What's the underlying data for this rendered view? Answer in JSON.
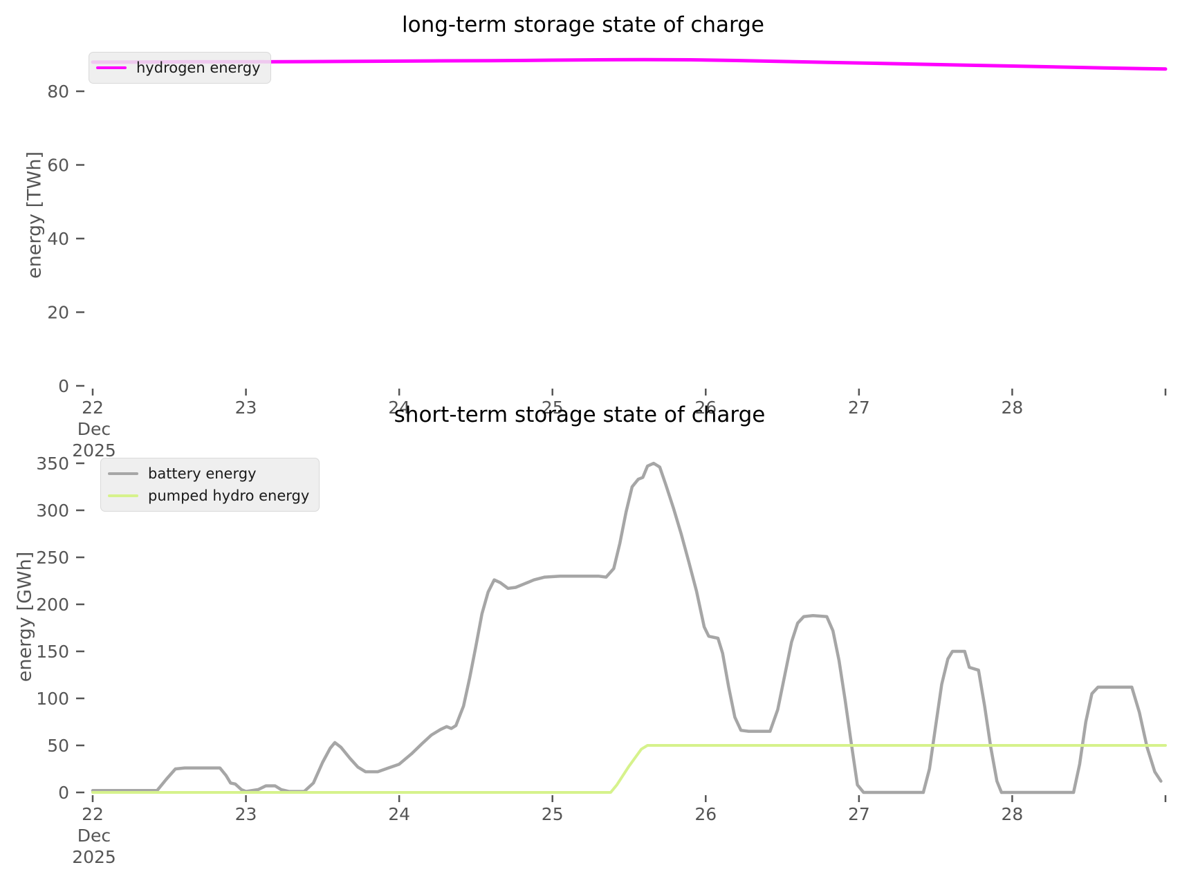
{
  "page": {
    "background": "#ffffff"
  },
  "chart_data": [
    {
      "type": "line",
      "title": "long-term storage state of charge",
      "ylabel": "energy [TWh]",
      "x_range": [
        22,
        29
      ],
      "x_ticks": [
        22,
        23,
        24,
        25,
        26,
        27,
        28,
        29
      ],
      "x_tick_labels": [
        "22",
        "23",
        "24",
        "25",
        "26",
        "27",
        "28",
        ""
      ],
      "x_sub_labels": [
        "Dec",
        "2025"
      ],
      "y_ticks": [
        0,
        20,
        40,
        60,
        80
      ],
      "y_range": [
        0,
        93
      ],
      "grid": false,
      "legend_position": "upper left",
      "tick_color": "#555555",
      "series": [
        {
          "name": "hydrogen energy",
          "color": "#ff00ff",
          "line_width": 5,
          "points": [
            [
              22.0,
              87.9
            ],
            [
              22.3,
              87.95
            ],
            [
              22.6,
              88.0
            ],
            [
              23.0,
              88.0
            ],
            [
              23.4,
              88.05
            ],
            [
              23.8,
              88.15
            ],
            [
              24.2,
              88.25
            ],
            [
              24.6,
              88.3
            ],
            [
              25.0,
              88.45
            ],
            [
              25.3,
              88.55
            ],
            [
              25.6,
              88.6
            ],
            [
              25.9,
              88.55
            ],
            [
              26.2,
              88.35
            ],
            [
              26.5,
              88.1
            ],
            [
              26.8,
              87.85
            ],
            [
              27.1,
              87.6
            ],
            [
              27.4,
              87.35
            ],
            [
              27.7,
              87.1
            ],
            [
              28.0,
              86.85
            ],
            [
              28.3,
              86.6
            ],
            [
              28.6,
              86.35
            ],
            [
              28.85,
              86.15
            ],
            [
              29.0,
              86.05
            ]
          ]
        }
      ]
    },
    {
      "type": "line",
      "title": "short-term storage state of charge",
      "ylabel": "energy [GWh]",
      "x_range": [
        22,
        29
      ],
      "x_ticks": [
        22,
        23,
        24,
        25,
        26,
        27,
        28,
        29
      ],
      "x_tick_labels": [
        "22",
        "23",
        "24",
        "25",
        "26",
        "27",
        "28",
        ""
      ],
      "x_sub_labels": [
        "Dec",
        "2025"
      ],
      "y_ticks": [
        0,
        50,
        100,
        150,
        200,
        250,
        300,
        350
      ],
      "y_range": [
        0,
        392
      ],
      "grid": false,
      "legend_position": "upper left",
      "tick_color": "#555555",
      "series": [
        {
          "name": "battery energy",
          "color": "#a6a6a6",
          "line_width": 4.5,
          "points": [
            [
              22.0,
              2
            ],
            [
              22.42,
              2
            ],
            [
              22.48,
              14
            ],
            [
              22.54,
              25
            ],
            [
              22.6,
              26
            ],
            [
              22.83,
              26
            ],
            [
              22.87,
              18
            ],
            [
              22.9,
              10
            ],
            [
              22.93,
              9
            ],
            [
              22.97,
              3
            ],
            [
              23.0,
              1
            ],
            [
              23.08,
              3
            ],
            [
              23.13,
              7
            ],
            [
              23.19,
              7
            ],
            [
              23.23,
              3
            ],
            [
              23.28,
              1
            ],
            [
              23.38,
              1
            ],
            [
              23.44,
              10
            ],
            [
              23.5,
              32
            ],
            [
              23.55,
              47
            ],
            [
              23.58,
              53
            ],
            [
              23.62,
              48
            ],
            [
              23.68,
              36
            ],
            [
              23.73,
              27
            ],
            [
              23.78,
              22
            ],
            [
              23.86,
              22
            ],
            [
              23.93,
              26
            ],
            [
              24.0,
              30
            ],
            [
              24.08,
              41
            ],
            [
              24.15,
              52
            ],
            [
              24.21,
              61
            ],
            [
              24.27,
              67
            ],
            [
              24.31,
              70
            ],
            [
              24.34,
              68
            ],
            [
              24.37,
              71
            ],
            [
              24.42,
              92
            ],
            [
              24.46,
              122
            ],
            [
              24.5,
              155
            ],
            [
              24.54,
              190
            ],
            [
              24.58,
              213
            ],
            [
              24.62,
              226
            ],
            [
              24.66,
              223
            ],
            [
              24.71,
              217
            ],
            [
              24.76,
              218
            ],
            [
              24.82,
              222
            ],
            [
              24.88,
              226
            ],
            [
              24.95,
              229
            ],
            [
              25.05,
              230
            ],
            [
              25.2,
              230
            ],
            [
              25.3,
              230
            ],
            [
              25.35,
              229
            ],
            [
              25.4,
              238
            ],
            [
              25.44,
              265
            ],
            [
              25.48,
              298
            ],
            [
              25.52,
              325
            ],
            [
              25.56,
              333
            ],
            [
              25.59,
              335
            ],
            [
              25.62,
              347
            ],
            [
              25.66,
              350
            ],
            [
              25.7,
              346
            ],
            [
              25.74,
              327
            ],
            [
              25.79,
              302
            ],
            [
              25.84,
              275
            ],
            [
              25.89,
              245
            ],
            [
              25.94,
              214
            ],
            [
              25.99,
              176
            ],
            [
              26.02,
              166
            ],
            [
              26.08,
              164
            ],
            [
              26.11,
              148
            ],
            [
              26.15,
              112
            ],
            [
              26.19,
              80
            ],
            [
              26.23,
              66
            ],
            [
              26.28,
              65
            ],
            [
              26.42,
              65
            ],
            [
              26.47,
              88
            ],
            [
              26.52,
              128
            ],
            [
              26.56,
              160
            ],
            [
              26.6,
              180
            ],
            [
              26.64,
              187
            ],
            [
              26.7,
              188
            ],
            [
              26.79,
              187
            ],
            [
              26.83,
              172
            ],
            [
              26.87,
              140
            ],
            [
              26.91,
              98
            ],
            [
              26.95,
              52
            ],
            [
              26.99,
              8
            ],
            [
              27.03,
              0
            ],
            [
              27.42,
              0
            ],
            [
              27.46,
              25
            ],
            [
              27.5,
              70
            ],
            [
              27.54,
              115
            ],
            [
              27.58,
              142
            ],
            [
              27.61,
              150
            ],
            [
              27.69,
              150
            ],
            [
              27.72,
              133
            ],
            [
              27.78,
              130
            ],
            [
              27.82,
              92
            ],
            [
              27.86,
              48
            ],
            [
              27.9,
              12
            ],
            [
              27.93,
              0
            ],
            [
              28.4,
              0
            ],
            [
              28.44,
              30
            ],
            [
              28.48,
              75
            ],
            [
              28.52,
              105
            ],
            [
              28.56,
              112
            ],
            [
              28.62,
              112
            ],
            [
              28.78,
              112
            ],
            [
              28.83,
              85
            ],
            [
              28.88,
              48
            ],
            [
              28.93,
              22
            ],
            [
              28.97,
              12
            ]
          ]
        },
        {
          "name": "pumped hydro energy",
          "color": "#d6f28c",
          "line_width": 4,
          "points": [
            [
              22.0,
              0
            ],
            [
              23.0,
              0
            ],
            [
              24.0,
              0
            ],
            [
              25.0,
              0
            ],
            [
              25.38,
              0
            ],
            [
              25.42,
              8
            ],
            [
              25.5,
              28
            ],
            [
              25.58,
              46
            ],
            [
              25.62,
              50
            ],
            [
              26.0,
              50
            ],
            [
              27.0,
              50
            ],
            [
              28.0,
              50
            ],
            [
              29.0,
              50
            ]
          ]
        }
      ]
    }
  ]
}
